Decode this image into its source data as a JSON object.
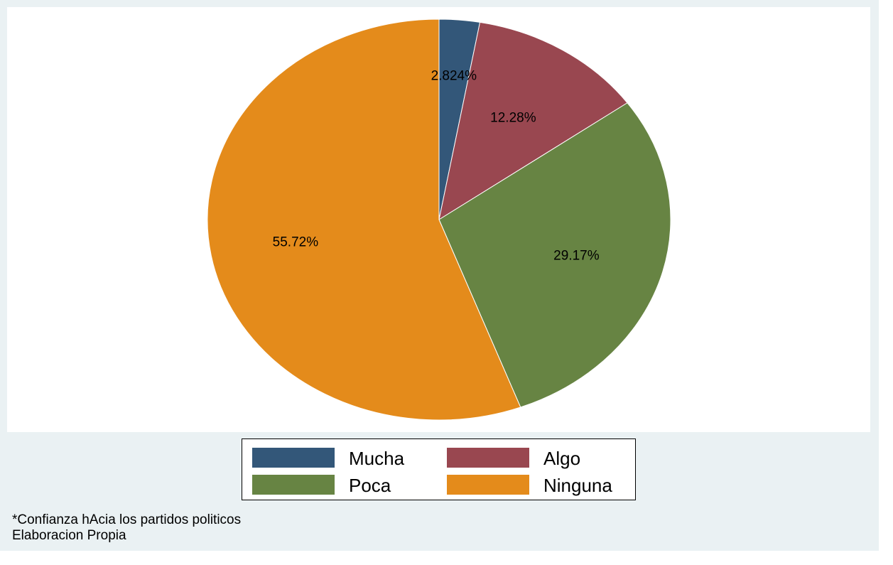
{
  "chart_data": {
    "type": "pie",
    "categories": [
      "Mucha",
      "Algo",
      "Poca",
      "Ninguna"
    ],
    "values": [
      2.824,
      12.28,
      29.17,
      55.72
    ],
    "value_labels": [
      "2.824%",
      "12.28%",
      "29.17%",
      "55.72%"
    ],
    "colors": [
      "#335779",
      "#994750",
      "#678443",
      "#e48b1b"
    ],
    "start": "12 o'clock",
    "direction": "clockwise",
    "legend": {
      "placement": "bottom",
      "columns": 2,
      "entries": [
        "Mucha",
        "Algo",
        "Poca",
        "Ninguna"
      ]
    }
  },
  "notes": [
    "*Confianza hAcia los partidos politicos",
    "Elaboracion Propia"
  ]
}
